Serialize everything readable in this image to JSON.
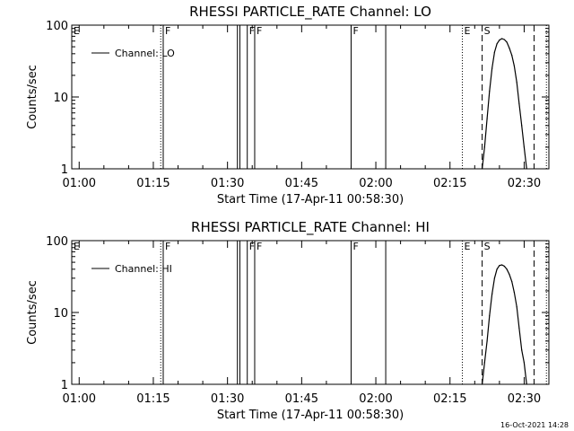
{
  "timestamp": "16-Oct-2021 14:28",
  "chart_data": [
    {
      "type": "line",
      "title": "RHESSI PARTICLE_RATE Channel: LO",
      "xlabel": "Start Time (17-Apr-11 00:58:30)",
      "ylabel": "Counts/sec",
      "y_scale": "log",
      "ylim": [
        1,
        100
      ],
      "xlim": [
        "00:58:30",
        "02:35:00"
      ],
      "x_ticks": [
        "01:00",
        "01:15",
        "01:30",
        "01:45",
        "02:00",
        "02:15",
        "02:30"
      ],
      "y_ticks": [
        "1",
        "10",
        "100"
      ],
      "legend": {
        "placement": "top-left",
        "entries": [
          "Channel: LO"
        ]
      },
      "grid": false,
      "series": [
        {
          "name": "Channel: LO",
          "x": [
            "02:21:30",
            "02:22:00",
            "02:22:30",
            "02:23:00",
            "02:23:30",
            "02:24:00",
            "02:24:30",
            "02:25:00",
            "02:25:30",
            "02:26:00",
            "02:26:30",
            "02:27:00",
            "02:27:30",
            "02:28:00",
            "02:28:30",
            "02:29:00",
            "02:29:30",
            "02:30:00",
            "02:30:30"
          ],
          "values": [
            1,
            2,
            5,
            12,
            25,
            42,
            55,
            62,
            65,
            63,
            58,
            48,
            38,
            27,
            16,
            8,
            4,
            2,
            1
          ]
        }
      ],
      "markers": [
        {
          "time": "00:58:30",
          "style": "dotted",
          "label": "E"
        },
        {
          "time": "01:16:30",
          "style": "dotted",
          "label": ""
        },
        {
          "time": "01:17:00",
          "style": "solid",
          "label": "F"
        },
        {
          "time": "01:32:00",
          "style": "solid",
          "label": ""
        },
        {
          "time": "01:32:30",
          "style": "solid",
          "label": ""
        },
        {
          "time": "01:34:00",
          "style": "solid",
          "label": "F"
        },
        {
          "time": "01:35:30",
          "style": "solid",
          "label": "F"
        },
        {
          "time": "01:55:00",
          "style": "solid",
          "label": "F"
        },
        {
          "time": "02:02:00",
          "style": "solid",
          "label": ""
        },
        {
          "time": "02:17:30",
          "style": "dotted",
          "label": "E"
        },
        {
          "time": "02:21:30",
          "style": "dashed",
          "label": "S"
        },
        {
          "time": "02:32:00",
          "style": "dashed",
          "label": ""
        },
        {
          "time": "02:34:30",
          "style": "dotted",
          "label": ""
        }
      ]
    },
    {
      "type": "line",
      "title": "RHESSI PARTICLE_RATE Channel: HI",
      "xlabel": "Start Time (17-Apr-11 00:58:30)",
      "ylabel": "Counts/sec",
      "y_scale": "log",
      "ylim": [
        1,
        100
      ],
      "xlim": [
        "00:58:30",
        "02:35:00"
      ],
      "x_ticks": [
        "01:00",
        "01:15",
        "01:30",
        "01:45",
        "02:00",
        "02:15",
        "02:30"
      ],
      "y_ticks": [
        "1",
        "10",
        "100"
      ],
      "legend": {
        "placement": "top-left",
        "entries": [
          "Channel: HI"
        ]
      },
      "grid": false,
      "series": [
        {
          "name": "Channel: HI",
          "x": [
            "02:21:30",
            "02:22:00",
            "02:22:30",
            "02:23:00",
            "02:23:30",
            "02:24:00",
            "02:24:30",
            "02:25:00",
            "02:25:30",
            "02:26:00",
            "02:26:30",
            "02:27:00",
            "02:27:30",
            "02:28:00",
            "02:28:30",
            "02:29:00",
            "02:29:30",
            "02:30:00",
            "02:30:30"
          ],
          "values": [
            1,
            2,
            4,
            9,
            18,
            30,
            40,
            45,
            46,
            44,
            40,
            34,
            27,
            19,
            12,
            6,
            3,
            2,
            1
          ]
        }
      ],
      "markers": [
        {
          "time": "00:58:30",
          "style": "dotted",
          "label": "E"
        },
        {
          "time": "01:16:30",
          "style": "dotted",
          "label": ""
        },
        {
          "time": "01:17:00",
          "style": "solid",
          "label": "F"
        },
        {
          "time": "01:32:00",
          "style": "solid",
          "label": ""
        },
        {
          "time": "01:32:30",
          "style": "solid",
          "label": ""
        },
        {
          "time": "01:34:00",
          "style": "solid",
          "label": "F"
        },
        {
          "time": "01:35:30",
          "style": "solid",
          "label": "F"
        },
        {
          "time": "01:55:00",
          "style": "solid",
          "label": "F"
        },
        {
          "time": "02:02:00",
          "style": "solid",
          "label": ""
        },
        {
          "time": "02:17:30",
          "style": "dotted",
          "label": "E"
        },
        {
          "time": "02:21:30",
          "style": "dashed",
          "label": "S"
        },
        {
          "time": "02:32:00",
          "style": "dashed",
          "label": ""
        },
        {
          "time": "02:34:30",
          "style": "dotted",
          "label": ""
        }
      ]
    }
  ]
}
